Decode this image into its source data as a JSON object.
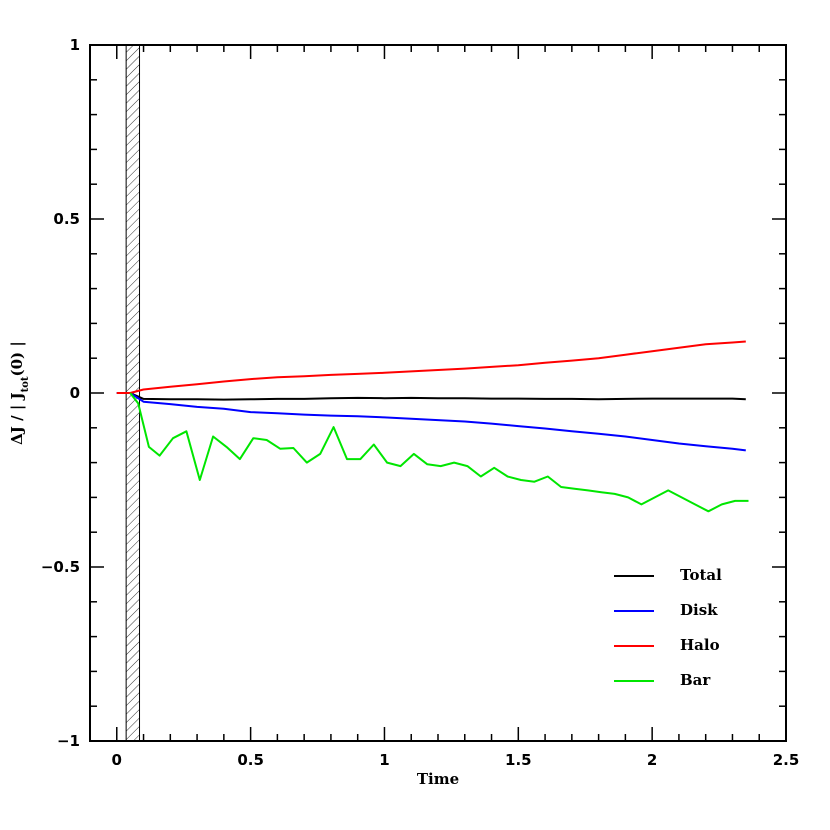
{
  "chart_data": {
    "type": "line",
    "title": "",
    "xlabel": "Time",
    "ylabel": {
      "prefix": "ΔJ  /  | J",
      "subscript": "tot",
      "suffix": "(0) |"
    },
    "xlim": [
      -0.1,
      2.5
    ],
    "ylim": [
      -1,
      1
    ],
    "xticks": [
      0,
      0.5,
      1,
      1.5,
      2,
      2.5
    ],
    "xtick_labels": [
      "0",
      "0.5",
      "1",
      "1.5",
      "2",
      "2.5"
    ],
    "yticks": [
      -1,
      -0.5,
      0,
      0.5,
      1
    ],
    "ytick_labels": [
      "−1",
      "−0.5",
      "0",
      "0.5",
      "1"
    ],
    "shaded_band": {
      "x_range": [
        0.035,
        0.085
      ],
      "pattern": "diagonal-hatch"
    },
    "legend_position": "bottom-right",
    "series": [
      {
        "name": "Total",
        "color": "#000000",
        "x": [
          0,
          0.05,
          0.1,
          0.2,
          0.3,
          0.4,
          0.5,
          0.6,
          0.7,
          0.8,
          0.9,
          1.0,
          1.1,
          1.2,
          1.3,
          1.4,
          1.5,
          1.6,
          1.7,
          1.8,
          1.9,
          2.0,
          2.1,
          2.2,
          2.3,
          2.35
        ],
        "y": [
          0,
          0,
          -0.017,
          -0.018,
          -0.018,
          -0.019,
          -0.018,
          -0.017,
          -0.017,
          -0.015,
          -0.014,
          -0.015,
          -0.014,
          -0.015,
          -0.015,
          -0.016,
          -0.016,
          -0.017,
          -0.017,
          -0.018,
          -0.017,
          -0.016,
          -0.016,
          -0.016,
          -0.016,
          -0.018
        ]
      },
      {
        "name": "Disk",
        "color": "#0000ff",
        "x": [
          0,
          0.05,
          0.1,
          0.2,
          0.3,
          0.4,
          0.5,
          0.6,
          0.7,
          0.8,
          0.9,
          1.0,
          1.1,
          1.2,
          1.3,
          1.4,
          1.5,
          1.6,
          1.7,
          1.8,
          1.9,
          2.0,
          2.1,
          2.2,
          2.3,
          2.35
        ],
        "y": [
          0,
          0,
          -0.025,
          -0.032,
          -0.04,
          -0.045,
          -0.055,
          -0.058,
          -0.062,
          -0.065,
          -0.067,
          -0.07,
          -0.074,
          -0.078,
          -0.082,
          -0.088,
          -0.095,
          -0.102,
          -0.11,
          -0.117,
          -0.125,
          -0.135,
          -0.145,
          -0.153,
          -0.16,
          -0.165
        ]
      },
      {
        "name": "Halo",
        "color": "#ff0000",
        "x": [
          0,
          0.05,
          0.1,
          0.2,
          0.3,
          0.4,
          0.5,
          0.6,
          0.7,
          0.8,
          0.9,
          1.0,
          1.1,
          1.2,
          1.3,
          1.4,
          1.5,
          1.6,
          1.7,
          1.8,
          1.9,
          2.0,
          2.1,
          2.2,
          2.3,
          2.35
        ],
        "y": [
          0,
          0,
          0.01,
          0.018,
          0.025,
          0.033,
          0.04,
          0.045,
          0.048,
          0.052,
          0.055,
          0.058,
          0.062,
          0.066,
          0.07,
          0.075,
          0.08,
          0.087,
          0.093,
          0.1,
          0.11,
          0.12,
          0.13,
          0.14,
          0.145,
          0.148
        ]
      },
      {
        "name": "Bar",
        "color": "#00e600",
        "x": [
          0.05,
          0.08,
          0.12,
          0.16,
          0.21,
          0.26,
          0.31,
          0.36,
          0.41,
          0.46,
          0.51,
          0.56,
          0.61,
          0.66,
          0.71,
          0.76,
          0.81,
          0.86,
          0.91,
          0.96,
          1.01,
          1.06,
          1.11,
          1.16,
          1.21,
          1.26,
          1.31,
          1.36,
          1.41,
          1.46,
          1.51,
          1.56,
          1.61,
          1.66,
          1.71,
          1.76,
          1.81,
          1.86,
          1.91,
          1.96,
          2.01,
          2.06,
          2.11,
          2.16,
          2.21,
          2.26,
          2.31,
          2.36
        ],
        "y": [
          0,
          -0.03,
          -0.155,
          -0.18,
          -0.13,
          -0.11,
          -0.25,
          -0.125,
          -0.155,
          -0.19,
          -0.13,
          -0.135,
          -0.16,
          -0.158,
          -0.2,
          -0.175,
          -0.098,
          -0.19,
          -0.19,
          -0.148,
          -0.2,
          -0.21,
          -0.175,
          -0.205,
          -0.21,
          -0.2,
          -0.21,
          -0.24,
          -0.215,
          -0.24,
          -0.25,
          -0.255,
          -0.24,
          -0.27,
          -0.275,
          -0.28,
          -0.285,
          -0.29,
          -0.3,
          -0.32,
          -0.3,
          -0.28,
          -0.3,
          -0.32,
          -0.34,
          -0.32,
          -0.31,
          -0.31
        ]
      }
    ]
  }
}
